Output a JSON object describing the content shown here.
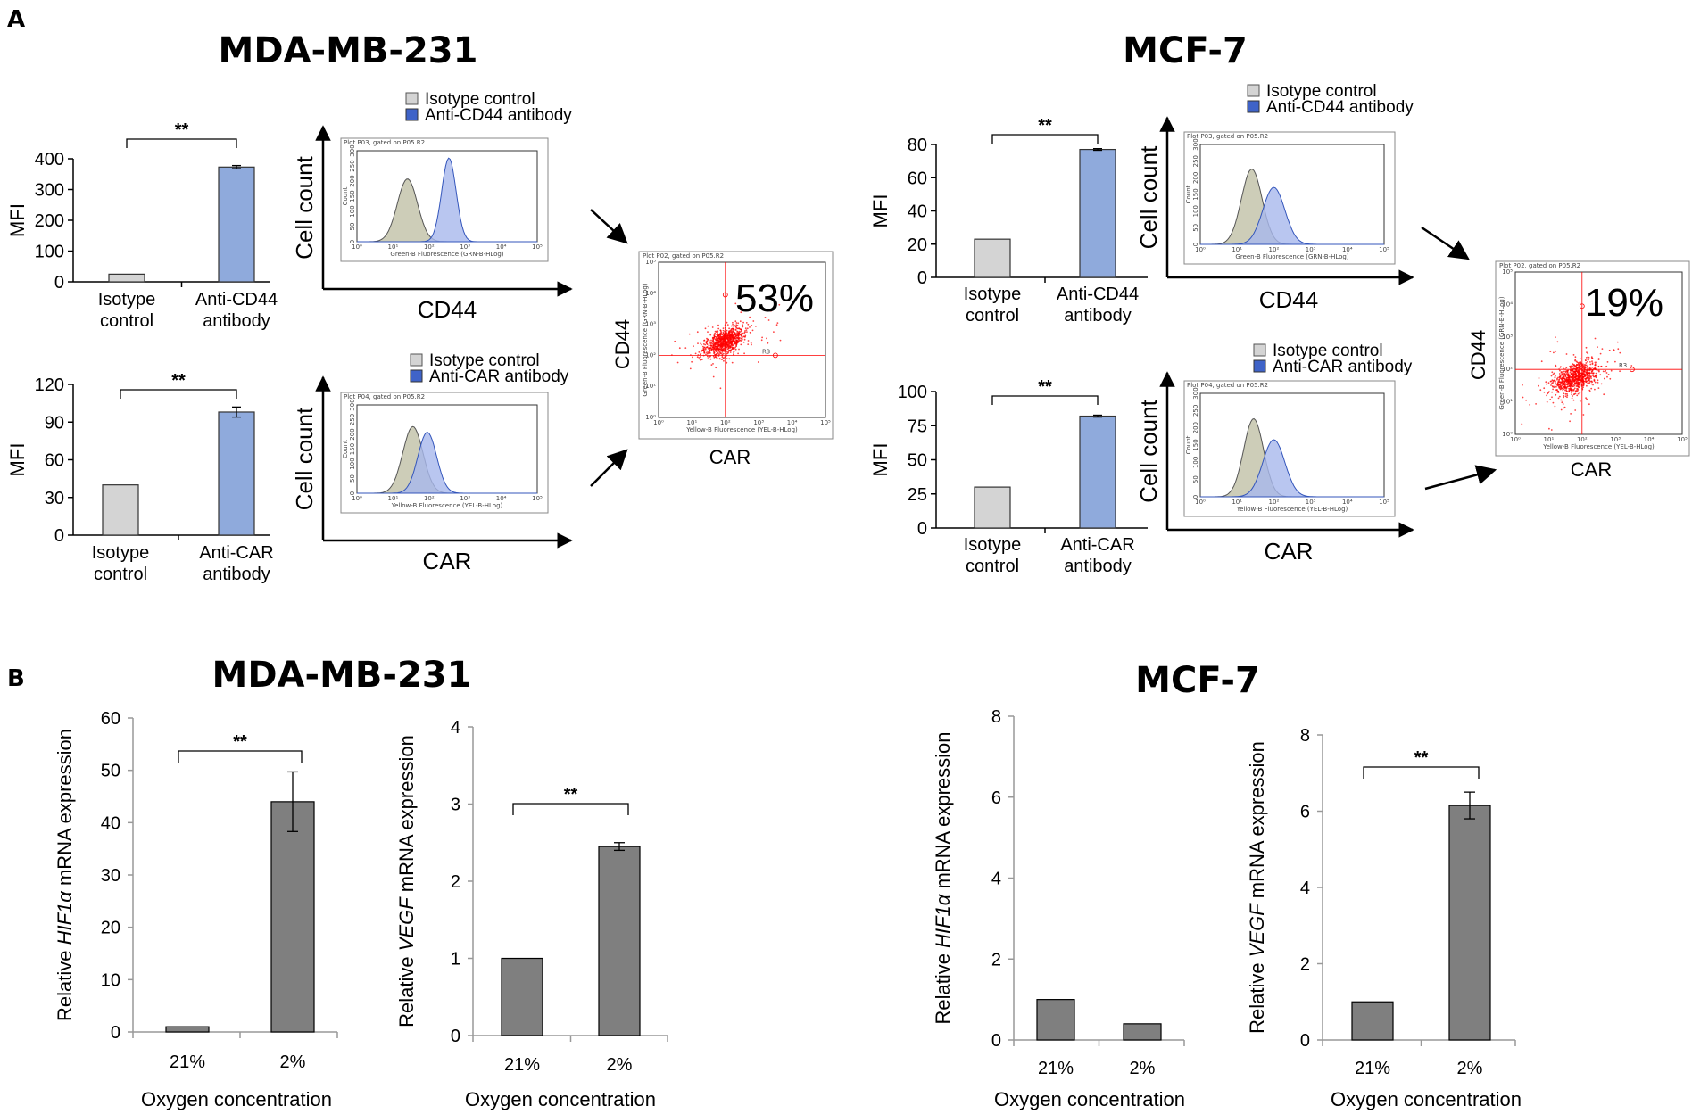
{
  "panel_labels": [
    "A",
    "B"
  ],
  "cell_lines": {
    "left": "MDA-MB-231",
    "right": "MCF-7"
  },
  "colors": {
    "isotype": "#d4d4d4",
    "antibody": "#8faadc",
    "antibody_dark": "#3f63c8",
    "qpcr": "#7f7f7f",
    "scatter": "#ff0000"
  },
  "legend_labels": {
    "isotype": "Isotype control",
    "anti_cd44": "Anti-CD44 antibody",
    "anti_car": "Anti-CAR antibody"
  },
  "histogram_labels": {
    "cell_count": "Cell count",
    "cd44_plot_title": "Plot P03, gated on P05.R2",
    "car_plot_title": "Plot P04, gated on P05.R2",
    "count_axis": "Count",
    "count_ticks": [
      "0",
      "50",
      "100",
      "150",
      "200",
      "250",
      "300"
    ],
    "decade_ticks": [
      "10⁰",
      "10¹",
      "10²",
      "10³",
      "10⁴",
      "10⁵"
    ],
    "cd44_axis": "Green-B Fluorescence (GRN-B-HLog)",
    "car_axis": "Yellow-B Fluorescence (YEL-B-HLog)"
  },
  "scatter_labels": {
    "plot_title": "Plot P02, gated on P05.R2",
    "region": "R3",
    "y_axis_small": "Green-B Fluorescence (GRN-B-HLog)",
    "x_axis_small": "Yellow-B Fluorescence (YEL-B-HLog)",
    "y_label": "CD44",
    "x_label": "CAR"
  },
  "chart_data": [
    {
      "id": "mda_cd44_mfi",
      "type": "bar",
      "cell_line": "MDA-MB-231",
      "ylabel": "MFI",
      "xlabel": "CD44",
      "categories": [
        "Isotype|control",
        "Anti-CD44|antibody"
      ],
      "values": [
        25,
        373
      ],
      "errors": [
        0,
        5
      ],
      "ylim": [
        0,
        400
      ],
      "yticks": [
        0,
        100,
        200,
        300,
        400
      ],
      "significance": "**"
    },
    {
      "id": "mda_car_mfi",
      "type": "bar",
      "cell_line": "MDA-MB-231",
      "ylabel": "MFI",
      "xlabel": "CAR",
      "categories": [
        "Isotype|control",
        "Anti-CAR|antibody"
      ],
      "values": [
        40,
        98
      ],
      "errors": [
        0,
        4
      ],
      "ylim": [
        0,
        120
      ],
      "yticks": [
        0,
        30,
        60,
        90,
        120
      ],
      "significance": "**"
    },
    {
      "id": "mcf_cd44_mfi",
      "type": "bar",
      "cell_line": "MCF-7",
      "ylabel": "MFI",
      "xlabel": "CD44",
      "categories": [
        "Isotype|control",
        "Anti-CD44|antibody"
      ],
      "values": [
        23,
        77
      ],
      "errors": [
        0,
        0.5
      ],
      "ylim": [
        0,
        80
      ],
      "yticks": [
        0,
        20,
        40,
        60,
        80
      ],
      "significance": "**"
    },
    {
      "id": "mcf_car_mfi",
      "type": "bar",
      "cell_line": "MCF-7",
      "ylabel": "MFI",
      "xlabel": "CAR",
      "categories": [
        "Isotype|control",
        "Anti-CAR|antibody"
      ],
      "values": [
        30,
        82
      ],
      "errors": [
        0,
        0.7
      ],
      "ylim": [
        0,
        100
      ],
      "yticks": [
        0,
        25,
        50,
        75,
        100
      ],
      "significance": "**"
    },
    {
      "id": "mda_cd44_hist",
      "type": "area",
      "title": "Plot P03, gated on P05.R2",
      "series": [
        {
          "name": "Isotype control",
          "peak_log10": 1.4,
          "sd": 0.28,
          "height": 0.75
        },
        {
          "name": "Anti-CD44 antibody",
          "peak_log10": 2.55,
          "sd": 0.2,
          "height": 1.0
        }
      ]
    },
    {
      "id": "mda_car_hist",
      "type": "area",
      "title": "Plot P04, gated on P05.R2",
      "series": [
        {
          "name": "Isotype control",
          "peak_log10": 1.55,
          "sd": 0.28,
          "height": 0.82
        },
        {
          "name": "Anti-CAR antibody",
          "peak_log10": 1.95,
          "sd": 0.26,
          "height": 0.75
        }
      ]
    },
    {
      "id": "mcf_cd44_hist",
      "type": "area",
      "title": "Plot P03, gated on P05.R2",
      "series": [
        {
          "name": "Isotype control",
          "peak_log10": 1.4,
          "sd": 0.28,
          "height": 0.82
        },
        {
          "name": "Anti-CD44 antibody",
          "peak_log10": 2.0,
          "sd": 0.3,
          "height": 0.62
        }
      ]
    },
    {
      "id": "mcf_car_hist",
      "type": "area",
      "title": "Plot P04, gated on P05.R2",
      "series": [
        {
          "name": "Isotype control",
          "peak_log10": 1.45,
          "sd": 0.27,
          "height": 0.82
        },
        {
          "name": "Anti-CAR antibody",
          "peak_log10": 2.0,
          "sd": 0.3,
          "height": 0.6
        }
      ]
    },
    {
      "id": "mda_scatter",
      "type": "scatter",
      "cell_line": "MDA-MB-231",
      "xlabel": "CAR",
      "ylabel": "CD44",
      "double_positive_percent": "53%",
      "cluster_center_log10": [
        2.0,
        2.45
      ],
      "spread_log10": 0.35,
      "points": 900
    },
    {
      "id": "mcf_scatter",
      "type": "scatter",
      "cell_line": "MCF-7",
      "xlabel": "CAR",
      "ylabel": "CD44",
      "double_positive_percent": "19%",
      "cluster_center_log10": [
        1.8,
        1.75
      ],
      "spread_log10": 0.4,
      "points": 900
    },
    {
      "id": "mda_hif1a",
      "type": "bar",
      "cell_line": "MDA-MB-231",
      "gene": "HIF1α",
      "ylabel": "Relative HIF1α mRNA expression",
      "xlabel": "Oxygen concentration",
      "categories": [
        "21%",
        "2%"
      ],
      "values": [
        1,
        44
      ],
      "errors": [
        0,
        5.7
      ],
      "ylim": [
        0,
        60
      ],
      "yticks": [
        0,
        10,
        20,
        30,
        40,
        50,
        60
      ],
      "significance": "**"
    },
    {
      "id": "mda_vegf",
      "type": "bar",
      "cell_line": "MDA-MB-231",
      "gene": "VEGF",
      "ylabel": "Relative VEGF mRNA expression",
      "xlabel": "Oxygen concentration",
      "categories": [
        "21%",
        "2%"
      ],
      "values": [
        1,
        2.45
      ],
      "errors": [
        0,
        0.05
      ],
      "ylim": [
        0,
        4
      ],
      "yticks": [
        0,
        1,
        2,
        3,
        4
      ],
      "significance": "**"
    },
    {
      "id": "mcf_hif1a",
      "type": "bar",
      "cell_line": "MCF-7",
      "gene": "HIF1α",
      "ylabel": "Relative HIF1α mRNA expression",
      "xlabel": "Oxygen concentration",
      "categories": [
        "21%",
        "2%"
      ],
      "values": [
        1,
        0.4
      ],
      "errors": [
        0,
        0
      ],
      "ylim": [
        0,
        8
      ],
      "yticks": [
        0,
        2,
        4,
        6,
        8
      ],
      "significance": ""
    },
    {
      "id": "mcf_vegf",
      "type": "bar",
      "cell_line": "MCF-7",
      "gene": "VEGF",
      "ylabel": "Relative VEGF mRNA expression",
      "xlabel": "Oxygen concentration",
      "categories": [
        "21%",
        "2%"
      ],
      "values": [
        1,
        6.15
      ],
      "errors": [
        0,
        0.35
      ],
      "ylim": [
        0,
        8
      ],
      "yticks": [
        0,
        2,
        4,
        6,
        8
      ],
      "significance": "**"
    }
  ]
}
